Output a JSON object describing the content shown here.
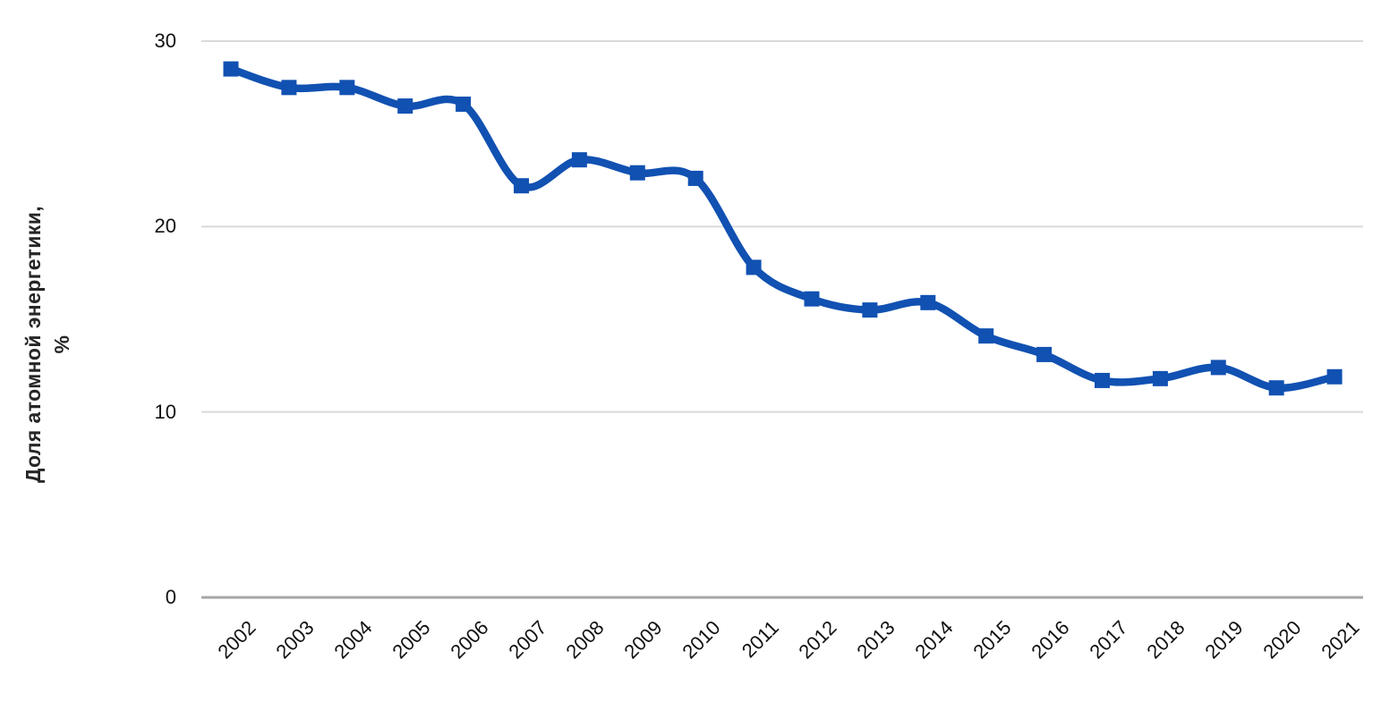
{
  "chart_data": {
    "type": "line",
    "title": "",
    "ylabel": "Доля атомной энергетики, %",
    "ylabel_lines": [
      "Доля атомной энергетики,",
      "%"
    ],
    "xlabel": "",
    "categories": [
      "2002",
      "2003",
      "2004",
      "2005",
      "2006",
      "2007",
      "2008",
      "2009",
      "2010",
      "2011",
      "2012",
      "2013",
      "2014",
      "2015",
      "2016",
      "2017",
      "2018",
      "2019",
      "2020",
      "2021"
    ],
    "series": [
      {
        "name": "Доля атомной энергетики, %",
        "values": [
          28.5,
          27.5,
          27.5,
          26.5,
          26.6,
          22.2,
          23.6,
          22.9,
          22.6,
          17.8,
          16.1,
          15.5,
          15.9,
          14.1,
          13.1,
          11.7,
          11.8,
          12.4,
          11.3,
          11.9
        ],
        "marker": "square",
        "interpolation": "smooth"
      }
    ],
    "ylim": [
      0,
      30
    ],
    "yticks": [
      0,
      10,
      20,
      30
    ],
    "grid": "horizontal",
    "legend": "none",
    "x_tick_rotation_deg": 45,
    "colors": {
      "line": "#1151b2",
      "gridline": "#d9d9d9",
      "axis_line": "#a6a6a6",
      "tick_text": "#111111",
      "axis_title_text": "#262626",
      "background": "#ffffff"
    }
  }
}
